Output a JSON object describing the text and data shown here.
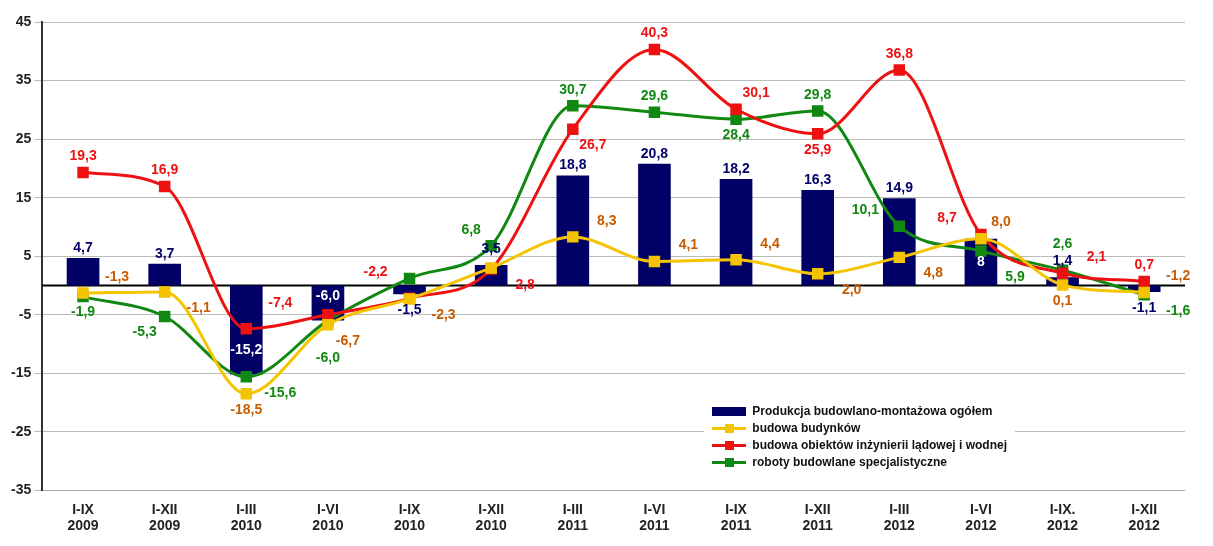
{
  "chart_data": {
    "type": "bar",
    "categories": [
      "I-IX 2009",
      "I-XII 2009",
      "I-III 2010",
      "I-VI 2010",
      "I-IX 2010",
      "I-XII 2010",
      "I-III 2011",
      "I-VI 2011",
      "I-IX 2011",
      "I-XII 2011",
      "I-III 2012",
      "I-VI 2012",
      "I-IX. 2012",
      "I-XII 2012"
    ],
    "series": [
      {
        "name": "Produkcja budowlano-montażowa ogółem",
        "type": "bar",
        "color": "#000066",
        "values": [
          4.7,
          3.7,
          -15.2,
          -6.0,
          -1.5,
          3.5,
          18.8,
          20.8,
          18.2,
          16.3,
          14.9,
          8.0,
          1.4,
          -1.1
        ],
        "value_labels": [
          "4,7",
          "3,7",
          "-15,2",
          "-6,0",
          "-1,5",
          "3,5",
          "18,8",
          "20,8",
          "18,2",
          "16,3",
          "14,9",
          "8",
          "1,4",
          "-1,1"
        ]
      },
      {
        "name": "budowa budynków",
        "type": "line",
        "color": "#f5c400",
        "values": [
          -1.3,
          -1.1,
          -18.5,
          -6.7,
          -2.3,
          3.0,
          8.3,
          4.1,
          4.4,
          2.0,
          4.8,
          8.0,
          0.1,
          -1.2
        ],
        "value_labels": [
          "-1,3",
          "-1,1",
          "-18,5",
          "-6,7",
          "-2,3",
          null,
          "8,3",
          "4,1",
          "4,4",
          "2,0",
          "4,8",
          "8,0",
          "0,1",
          "-1,2"
        ]
      },
      {
        "name": "budowa obiektów inżynierii lądowej i wodnej",
        "type": "line",
        "color": "#ee1111",
        "values": [
          19.3,
          16.9,
          -7.4,
          -5.0,
          -2.2,
          2.8,
          26.7,
          40.3,
          30.1,
          25.9,
          36.8,
          8.7,
          2.1,
          0.7
        ],
        "value_labels": [
          "19,3",
          "16,9",
          "-7,4",
          null,
          "-2,2",
          "2,8",
          "26,7",
          "40,3",
          "30,1",
          "25,9",
          "36,8",
          "8,7",
          "2,1",
          "0,7"
        ]
      },
      {
        "name": "roboty budowlane specjalistyczne",
        "type": "line",
        "color": "#118811",
        "values": [
          -1.9,
          -5.3,
          -15.6,
          -6.0,
          1.2,
          6.8,
          30.7,
          29.6,
          28.4,
          29.8,
          10.1,
          5.9,
          2.6,
          -1.6
        ],
        "value_labels": [
          "-1,9",
          "-5,3",
          "-15,6",
          "-6,0",
          null,
          "6,8",
          "30,7",
          "29,6",
          "28,4",
          "29,8",
          "10,1",
          "5,9",
          "2,6",
          "-1,6"
        ]
      }
    ],
    "ylim": [
      -35,
      45
    ],
    "yticks": [
      -35,
      -25,
      -15,
      -5,
      5,
      15,
      25,
      35,
      45
    ],
    "grid": "y",
    "legend": "bottom right",
    "marker": "square"
  }
}
